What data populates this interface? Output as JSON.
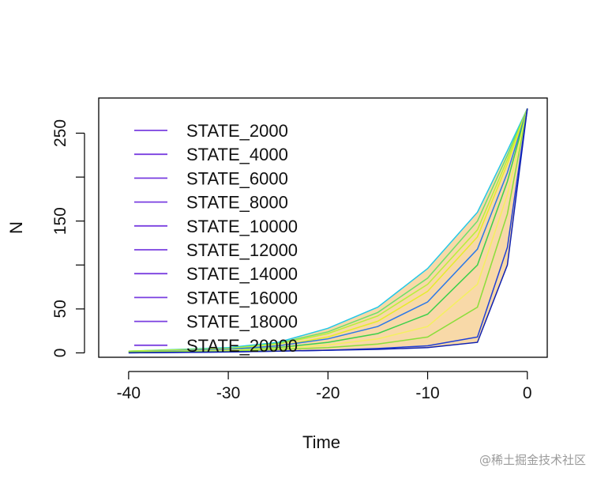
{
  "chart_data": {
    "type": "line",
    "xlabel": "Time",
    "ylabel": "N",
    "xlim": [
      -43,
      2
    ],
    "ylim": [
      -5,
      290
    ],
    "x_ticks": [
      -40,
      -30,
      -20,
      -10,
      0
    ],
    "y_ticks": [
      0,
      50,
      150,
      250
    ],
    "y_minor_ticks": [
      100,
      200
    ],
    "grid": false,
    "legend_position": "top-left",
    "legend_color": "#7a3fe0",
    "envelope_color": "#f8d9a8",
    "series": [
      {
        "name": "STATE_2000",
        "color": "#22c8e8",
        "x": [
          -40,
          -30,
          -25,
          -20,
          -15,
          -10,
          -5,
          -2,
          0
        ],
        "y": [
          2,
          6,
          12,
          28,
          52,
          96,
          160,
          230,
          278
        ]
      },
      {
        "name": "STATE_4000",
        "color": "#6ce06a",
        "x": [
          -40,
          -30,
          -25,
          -20,
          -15,
          -10,
          -5,
          -2,
          0
        ],
        "y": [
          2,
          5,
          11,
          24,
          46,
          85,
          150,
          225,
          278
        ]
      },
      {
        "name": "STATE_6000",
        "color": "#b8f03a",
        "x": [
          -40,
          -30,
          -25,
          -20,
          -15,
          -10,
          -5,
          -2,
          0
        ],
        "y": [
          2,
          5,
          10,
          22,
          42,
          78,
          140,
          220,
          278
        ]
      },
      {
        "name": "STATE_8000",
        "color": "#e6ec2a",
        "x": [
          -40,
          -30,
          -25,
          -20,
          -15,
          -10,
          -5,
          -2,
          0
        ],
        "y": [
          1,
          4,
          8,
          18,
          36,
          70,
          132,
          215,
          278
        ]
      },
      {
        "name": "STATE_10000",
        "color": "#2c78e8",
        "x": [
          -40,
          -30,
          -25,
          -20,
          -15,
          -10,
          -5,
          -2,
          0
        ],
        "y": [
          1,
          4,
          8,
          16,
          30,
          58,
          118,
          205,
          278
        ]
      },
      {
        "name": "STATE_12000",
        "color": "#3cd04a",
        "x": [
          -40,
          -30,
          -25,
          -20,
          -15,
          -10,
          -5,
          -2,
          0
        ],
        "y": [
          1,
          3,
          6,
          12,
          22,
          44,
          100,
          195,
          278
        ]
      },
      {
        "name": "STATE_14000",
        "color": "#f4f060",
        "x": [
          -40,
          -30,
          -25,
          -20,
          -15,
          -10,
          -5,
          -2,
          0
        ],
        "y": [
          1,
          3,
          5,
          9,
          16,
          30,
          78,
          180,
          278
        ]
      },
      {
        "name": "STATE_16000",
        "color": "#8ade3a",
        "x": [
          -40,
          -30,
          -25,
          -20,
          -15,
          -10,
          -5,
          -2,
          0
        ],
        "y": [
          1,
          2,
          4,
          6,
          10,
          18,
          52,
          158,
          278
        ]
      },
      {
        "name": "STATE_18000",
        "color": "#1e3fd8",
        "x": [
          -40,
          -30,
          -25,
          -20,
          -15,
          -10,
          -5,
          -2,
          0
        ],
        "y": [
          0,
          1,
          2,
          3,
          5,
          8,
          18,
          120,
          278
        ]
      },
      {
        "name": "STATE_20000",
        "color": "#1020b0",
        "x": [
          -40,
          -30,
          -25,
          -20,
          -15,
          -10,
          -5,
          -2,
          0
        ],
        "y": [
          0,
          1,
          2,
          3,
          4,
          6,
          12,
          100,
          278
        ]
      }
    ]
  },
  "watermark": "@稀土掘金技术社区"
}
